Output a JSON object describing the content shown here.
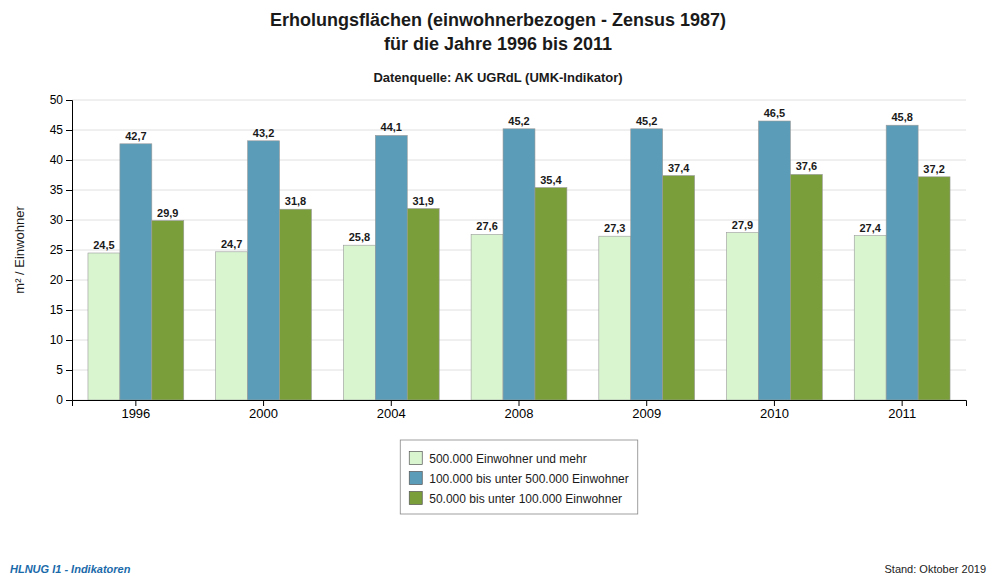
{
  "chart_data": {
    "type": "bar",
    "title": [
      "Erholungsflächen (einwohnerbezogen - Zensus 1987)",
      "für die Jahre 1996 bis 2011"
    ],
    "subtitle": "Datenquelle: AK UGRdL (UMK-Indikator)",
    "y_label": "m² / Einwohner",
    "categories": [
      "1996",
      "2000",
      "2004",
      "2008",
      "2009",
      "2010",
      "2011"
    ],
    "series": [
      {
        "name": "500.000 Einwohner und mehr",
        "color": "#d8f5d0",
        "values": [
          24.5,
          24.7,
          25.8,
          27.6,
          27.3,
          27.9,
          27.4
        ],
        "value_labels": [
          "24,5",
          "24,7",
          "25,8",
          "27,6",
          "27,3",
          "27,9",
          "27,4"
        ]
      },
      {
        "name": "100.000 bis unter 500.000 Einwohner",
        "color": "#5b9db8",
        "values": [
          42.7,
          43.2,
          44.1,
          45.2,
          45.2,
          46.5,
          45.8
        ],
        "value_labels": [
          "42,7",
          "43,2",
          "44,1",
          "45,2",
          "45,2",
          "46,5",
          "45,8"
        ]
      },
      {
        "name": "50.000 bis unter 100.000 Einwohner",
        "color": "#7a9e3a",
        "values": [
          29.9,
          31.8,
          31.9,
          35.4,
          37.4,
          37.6,
          37.2
        ],
        "value_labels": [
          "29,9",
          "31,8",
          "31,9",
          "35,4",
          "37,4",
          "37,6",
          "37,2"
        ]
      }
    ],
    "ylim": [
      0,
      50
    ],
    "yticks": [
      0,
      5,
      10,
      15,
      20,
      25,
      30,
      35,
      40,
      45,
      50
    ],
    "grid": true,
    "data_labels": true,
    "legend": "bottom",
    "annotations": [
      {
        "text": "HLNUG I1 - Indikatoren",
        "color": "#1a6aaa"
      },
      {
        "text": "Stand: Oktober 2019",
        "color": "#222222"
      }
    ]
  }
}
